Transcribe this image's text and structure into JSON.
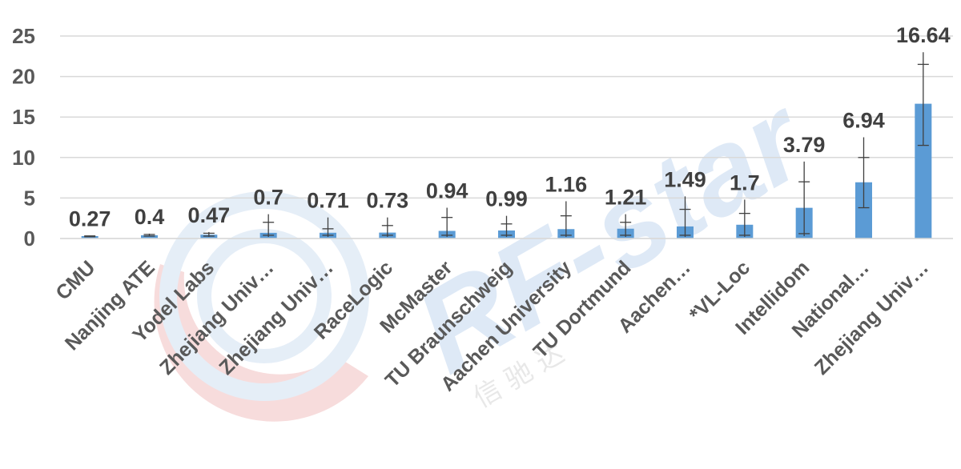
{
  "chart_data": {
    "type": "bar",
    "title": "",
    "xlabel": "",
    "ylabel": "",
    "ylim": [
      0,
      25
    ],
    "yticks": [
      0,
      5,
      10,
      15,
      20,
      25
    ],
    "grid": true,
    "bar_color": "#5b9bd5",
    "categories": [
      "CMU",
      "Nanjing ATE",
      "Yodel Labs",
      "Zhejiang Univ…",
      "Zhejiang Univ…",
      "RaceLogic",
      "McMaster",
      "TU Braunschweig",
      "Aachen University",
      "TU Dortmund",
      "Aachen…",
      "*VL-Loc",
      "Intellidom",
      "National…",
      "Zhejiang Univ…"
    ],
    "values": [
      0.27,
      0.4,
      0.47,
      0.7,
      0.71,
      0.73,
      0.94,
      0.99,
      1.16,
      1.21,
      1.49,
      1.7,
      3.79,
      6.94,
      16.64
    ],
    "data_labels": [
      "0.27",
      "0.4",
      "0.47",
      "0.7",
      "0.71",
      "0.73",
      "0.94",
      "0.99",
      "1.16",
      "1.21",
      "1.49",
      "1.7",
      "3.79",
      "6.94",
      "16.64"
    ],
    "error_bars": [
      {
        "low": 0.2,
        "high": 0.35,
        "inner_low": 0.22,
        "inner_high": 0.32
      },
      {
        "low": 0.25,
        "high": 0.6,
        "inner_low": 0.3,
        "inner_high": 0.5
      },
      {
        "low": 0.2,
        "high": 0.8,
        "inner_low": 0.3,
        "inner_high": 0.65
      },
      {
        "low": 0.2,
        "high": 3.0,
        "inner_low": 0.4,
        "inner_high": 2.0
      },
      {
        "low": 0.2,
        "high": 2.6,
        "inner_low": 0.4,
        "inner_high": 1.2
      },
      {
        "low": 0.2,
        "high": 2.6,
        "inner_low": 0.4,
        "inner_high": 1.6
      },
      {
        "low": 0.2,
        "high": 3.8,
        "inner_low": 0.4,
        "inner_high": 2.6
      },
      {
        "low": 0.2,
        "high": 2.8,
        "inner_low": 0.4,
        "inner_high": 1.8
      },
      {
        "low": 0.2,
        "high": 4.6,
        "inner_low": 0.4,
        "inner_high": 2.8
      },
      {
        "low": 0.2,
        "high": 3.0,
        "inner_low": 0.4,
        "inner_high": 2.0
      },
      {
        "low": 0.2,
        "high": 5.2,
        "inner_low": 0.4,
        "inner_high": 3.6
      },
      {
        "low": 0.2,
        "high": 4.8,
        "inner_low": 0.4,
        "inner_high": 3.1
      },
      {
        "low": 0.3,
        "high": 9.5,
        "inner_low": 0.6,
        "inner_high": 7.0
      },
      {
        "low": 3.8,
        "high": 12.5,
        "inner_low": 3.8,
        "inner_high": 10.0
      },
      {
        "low": 11.5,
        "high": 23.0,
        "inner_low": 11.5,
        "inner_high": 21.5
      }
    ]
  },
  "watermark": {
    "text": "RF-star",
    "sub_text": "信 驰 达",
    "colors": {
      "blue": "#dbe7f5",
      "red": "#f7d8d8"
    }
  }
}
